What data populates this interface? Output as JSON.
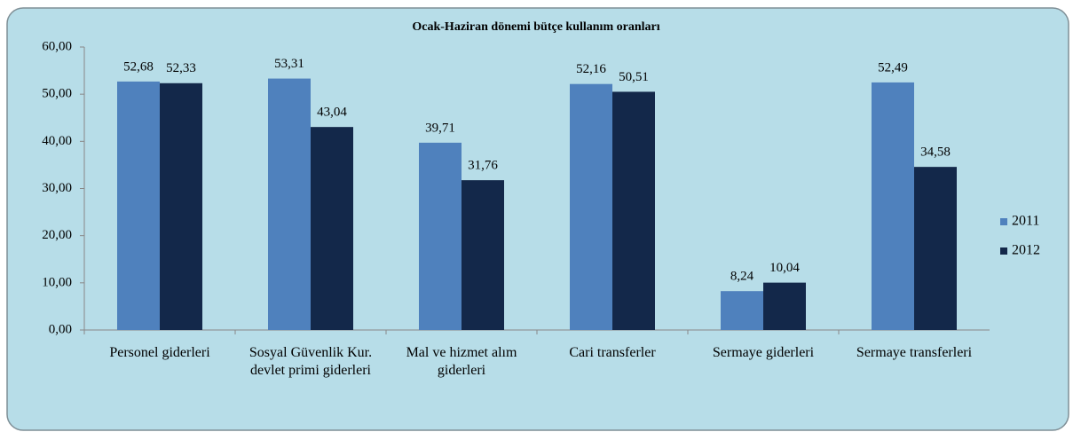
{
  "chart_data": {
    "type": "bar",
    "title": "Ocak-Haziran dönemi bütçe kullanım oranları",
    "categories": [
      "Personel giderleri",
      "Sosyal Güvenlik Kur. devlet primi giderleri",
      "Mal ve hizmet alım giderleri",
      "Cari transferler",
      "Sermaye giderleri",
      "Sermaye transferleri"
    ],
    "series": [
      {
        "name": "2011",
        "color": "#4f81bd",
        "values": [
          52.68,
          53.31,
          39.71,
          52.16,
          8.24,
          52.49
        ],
        "value_labels": [
          "52,68",
          "53,31",
          "39,71",
          "52,16",
          "8,24",
          "52,49"
        ]
      },
      {
        "name": "2012",
        "color": "#13284a",
        "values": [
          52.33,
          43.04,
          31.76,
          50.51,
          10.04,
          34.58
        ],
        "value_labels": [
          "52,33",
          "43,04",
          "31,76",
          "50,51",
          "10,04",
          "34,58"
        ]
      }
    ],
    "ylim": [
      0,
      60
    ],
    "yticks": [
      {
        "value": 0,
        "label": "0,00"
      },
      {
        "value": 10,
        "label": "10,00"
      },
      {
        "value": 20,
        "label": "20,00"
      },
      {
        "value": 30,
        "label": "30,00"
      },
      {
        "value": 40,
        "label": "40,00"
      },
      {
        "value": 50,
        "label": "50,00"
      },
      {
        "value": 60,
        "label": "60,00"
      }
    ],
    "grid": false,
    "legend": "right"
  }
}
